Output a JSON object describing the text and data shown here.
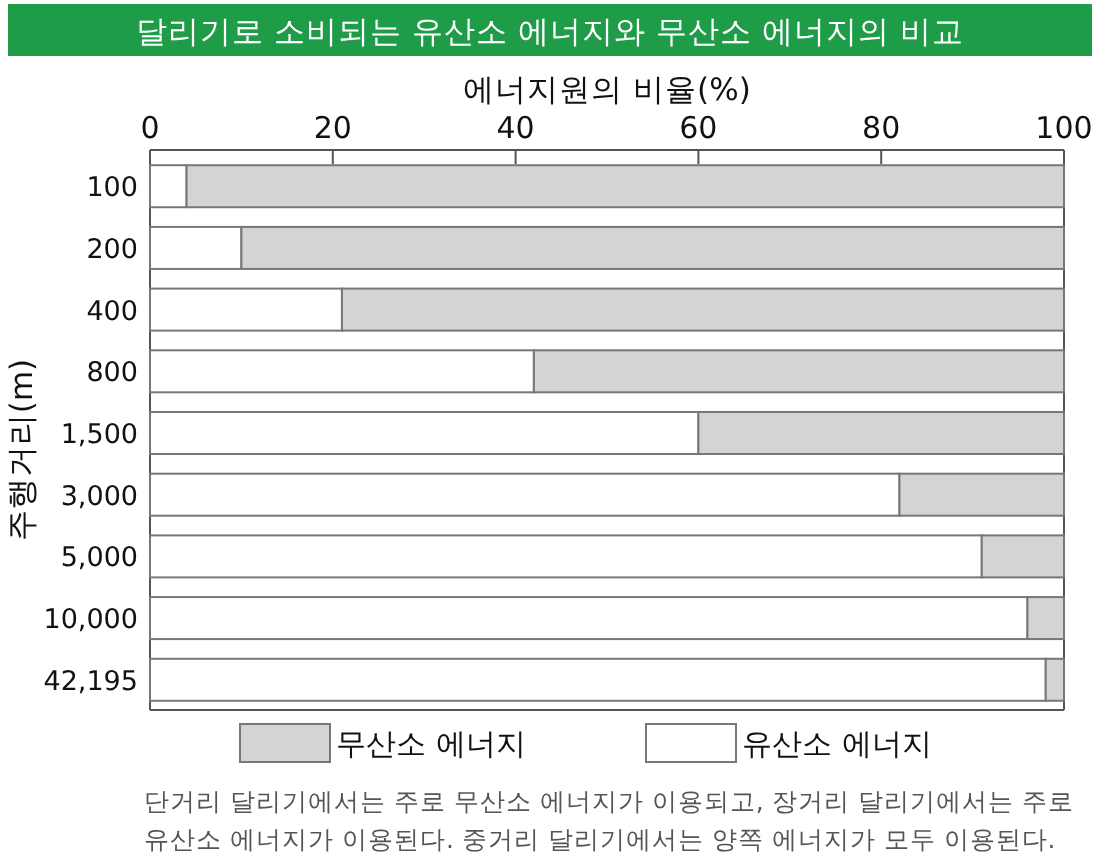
{
  "chart_data": {
    "type": "bar",
    "orientation": "horizontal",
    "stacked": true,
    "title": "달리기로 소비되는 유산소 에너지와 무산소 에너지의 비교",
    "xlabel": "에너지원의 비율(%)",
    "ylabel": "주행거리(m)",
    "categories": [
      "100",
      "200",
      "400",
      "800",
      "1,500",
      "3,000",
      "5,000",
      "10,000",
      "42,195"
    ],
    "series": [
      {
        "name": "유산소 에너지",
        "color": "#ffffff",
        "values": [
          4,
          10,
          21,
          42,
          60,
          82,
          91,
          96,
          98
        ]
      },
      {
        "name": "무산소 에너지",
        "color": "#d3d4d6",
        "values": [
          96,
          90,
          79,
          58,
          40,
          18,
          9,
          4,
          2
        ]
      }
    ],
    "xlim": [
      0,
      100
    ],
    "xticks": [
      0,
      20,
      40,
      60,
      80,
      100
    ],
    "legend": "bottom",
    "annotations": [
      "단거리 달리기에서는 주로 무산소 에너지가 이용되고, 장거리 달리기에서는 주로 유산소 에너지가 이용된다. 중거리 달리기에서는 양쪽 에너지가 모두 이용된다."
    ]
  }
}
